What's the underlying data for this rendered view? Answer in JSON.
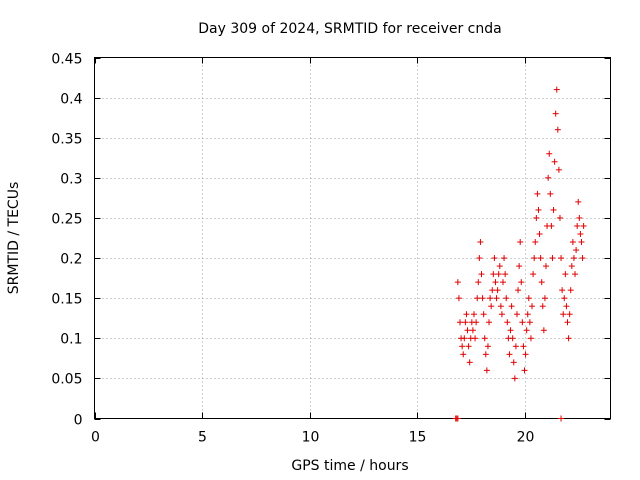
{
  "chart_data": {
    "type": "scatter",
    "title": "Day 309 of 2024, SRMTID for receiver cnda",
    "xlabel": "GPS time / hours",
    "ylabel": "SRMTID / TECUs",
    "xlim": [
      0,
      24
    ],
    "ylim": [
      0,
      0.45
    ],
    "xticks": [
      0,
      5,
      10,
      15,
      20
    ],
    "xtick_labels": [
      "0",
      "5",
      "10",
      "15",
      "20"
    ],
    "yticks": [
      0,
      0.05,
      0.1,
      0.15,
      0.2,
      0.25,
      0.3,
      0.35,
      0.4,
      0.45
    ],
    "ytick_labels": [
      "0",
      "0.05",
      "0.1",
      "0.15",
      "0.2",
      "0.25",
      "0.3",
      "0.35",
      "0.4",
      "0.45"
    ],
    "grid": true,
    "marker": "+",
    "color": "#e00000",
    "series": [
      {
        "name": "SRMTID",
        "points": [
          [
            16.8,
            0.0
          ],
          [
            16.85,
            0.0
          ],
          [
            16.9,
            0.0
          ],
          [
            21.7,
            0.0
          ],
          [
            16.9,
            0.17
          ],
          [
            16.95,
            0.15
          ],
          [
            17.0,
            0.12
          ],
          [
            17.05,
            0.1
          ],
          [
            17.1,
            0.09
          ],
          [
            17.15,
            0.08
          ],
          [
            17.2,
            0.1
          ],
          [
            17.25,
            0.12
          ],
          [
            17.3,
            0.13
          ],
          [
            17.35,
            0.11
          ],
          [
            17.4,
            0.09
          ],
          [
            17.45,
            0.07
          ],
          [
            17.5,
            0.1
          ],
          [
            17.55,
            0.12
          ],
          [
            17.6,
            0.11
          ],
          [
            17.65,
            0.13
          ],
          [
            17.7,
            0.1
          ],
          [
            17.75,
            0.12
          ],
          [
            17.8,
            0.15
          ],
          [
            17.85,
            0.17
          ],
          [
            17.9,
            0.2
          ],
          [
            17.95,
            0.22
          ],
          [
            18.0,
            0.18
          ],
          [
            18.05,
            0.15
          ],
          [
            18.1,
            0.13
          ],
          [
            18.15,
            0.1
          ],
          [
            18.2,
            0.08
          ],
          [
            18.25,
            0.06
          ],
          [
            18.3,
            0.09
          ],
          [
            18.35,
            0.12
          ],
          [
            18.4,
            0.15
          ],
          [
            18.45,
            0.14
          ],
          [
            18.5,
            0.16
          ],
          [
            18.55,
            0.18
          ],
          [
            18.6,
            0.2
          ],
          [
            18.65,
            0.17
          ],
          [
            18.7,
            0.15
          ],
          [
            18.75,
            0.16
          ],
          [
            18.8,
            0.18
          ],
          [
            18.85,
            0.19
          ],
          [
            18.9,
            0.14
          ],
          [
            18.95,
            0.13
          ],
          [
            19.0,
            0.17
          ],
          [
            19.05,
            0.2
          ],
          [
            19.1,
            0.18
          ],
          [
            19.15,
            0.15
          ],
          [
            19.2,
            0.12
          ],
          [
            19.25,
            0.1
          ],
          [
            19.3,
            0.08
          ],
          [
            19.35,
            0.11
          ],
          [
            19.4,
            0.14
          ],
          [
            19.45,
            0.1
          ],
          [
            19.5,
            0.07
          ],
          [
            19.55,
            0.05
          ],
          [
            19.6,
            0.09
          ],
          [
            19.65,
            0.13
          ],
          [
            19.7,
            0.16
          ],
          [
            19.75,
            0.19
          ],
          [
            19.8,
            0.22
          ],
          [
            19.85,
            0.17
          ],
          [
            19.9,
            0.12
          ],
          [
            19.95,
            0.09
          ],
          [
            20.0,
            0.06
          ],
          [
            20.05,
            0.08
          ],
          [
            20.1,
            0.11
          ],
          [
            20.15,
            0.13
          ],
          [
            20.2,
            0.15
          ],
          [
            20.25,
            0.12
          ],
          [
            20.3,
            0.1
          ],
          [
            20.35,
            0.14
          ],
          [
            20.4,
            0.18
          ],
          [
            20.45,
            0.2
          ],
          [
            20.5,
            0.22
          ],
          [
            20.55,
            0.25
          ],
          [
            20.6,
            0.28
          ],
          [
            20.65,
            0.26
          ],
          [
            20.7,
            0.23
          ],
          [
            20.75,
            0.2
          ],
          [
            20.8,
            0.17
          ],
          [
            20.85,
            0.14
          ],
          [
            20.9,
            0.11
          ],
          [
            20.95,
            0.15
          ],
          [
            21.0,
            0.19
          ],
          [
            21.05,
            0.24
          ],
          [
            21.1,
            0.3
          ],
          [
            21.15,
            0.33
          ],
          [
            21.2,
            0.28
          ],
          [
            21.25,
            0.24
          ],
          [
            21.3,
            0.2
          ],
          [
            21.35,
            0.26
          ],
          [
            21.4,
            0.32
          ],
          [
            21.45,
            0.38
          ],
          [
            21.5,
            0.41
          ],
          [
            21.55,
            0.36
          ],
          [
            21.6,
            0.31
          ],
          [
            21.65,
            0.25
          ],
          [
            21.7,
            0.2
          ],
          [
            21.75,
            0.16
          ],
          [
            21.8,
            0.13
          ],
          [
            21.85,
            0.15
          ],
          [
            21.9,
            0.18
          ],
          [
            21.95,
            0.14
          ],
          [
            22.0,
            0.12
          ],
          [
            22.05,
            0.1
          ],
          [
            22.1,
            0.13
          ],
          [
            22.15,
            0.16
          ],
          [
            22.2,
            0.19
          ],
          [
            22.25,
            0.22
          ],
          [
            22.3,
            0.2
          ],
          [
            22.35,
            0.18
          ],
          [
            22.4,
            0.21
          ],
          [
            22.45,
            0.24
          ],
          [
            22.5,
            0.27
          ],
          [
            22.55,
            0.25
          ],
          [
            22.6,
            0.23
          ],
          [
            22.65,
            0.22
          ],
          [
            22.7,
            0.2
          ],
          [
            22.75,
            0.24
          ]
        ]
      }
    ]
  }
}
